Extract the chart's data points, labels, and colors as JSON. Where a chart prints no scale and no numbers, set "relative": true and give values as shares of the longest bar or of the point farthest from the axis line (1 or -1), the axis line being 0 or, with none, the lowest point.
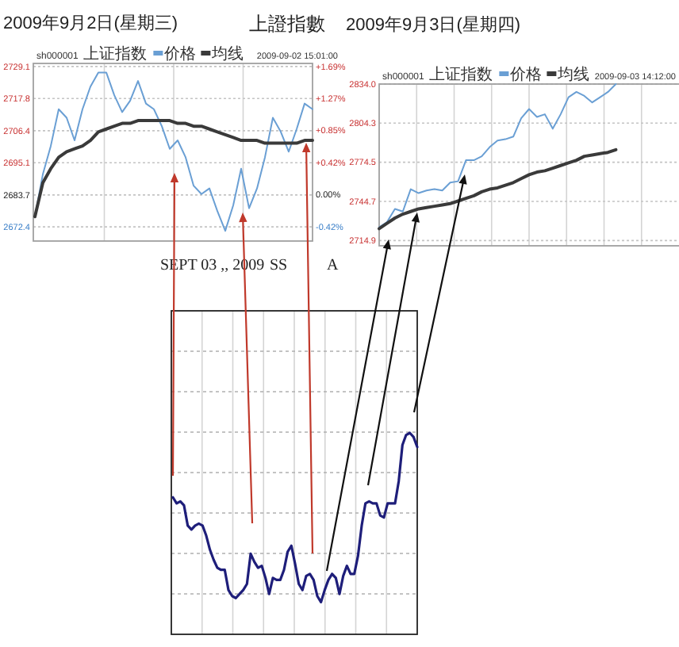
{
  "chart_data": [
    {
      "type": "line",
      "title": "2009年9月2日(星期三)",
      "subtitle": "上證指數",
      "annotations": [
        "sh000001",
        "上证指数",
        "2009-09-02 15:01:00"
      ],
      "categories": [
        null,
        null,
        null,
        null,
        null,
        null,
        null,
        null,
        null,
        null,
        null,
        null,
        null,
        null,
        null,
        null,
        null,
        null,
        null,
        null,
        null,
        null,
        null,
        null,
        null,
        null,
        null,
        null,
        null,
        null,
        null,
        null,
        null,
        null,
        null,
        null
      ],
      "series": [
        {
          "name": "价格",
          "color": "#6a9fd4",
          "values": [
            2676,
            2691,
            2701,
            2714,
            2711,
            2703,
            2714,
            2722,
            2727,
            2727,
            2719,
            2713,
            2717,
            2724,
            2716,
            2714,
            2708,
            2700,
            2703,
            2697,
            2687,
            2684,
            2686,
            2678,
            2671,
            2680,
            2693,
            2679,
            2686,
            2697,
            2711,
            2706,
            2699,
            2707,
            2716,
            2714
          ]
        },
        {
          "name": "均线",
          "color": "#3a3a3a",
          "values": [
            2676,
            2688,
            2693,
            2697,
            2699,
            2700,
            2701,
            2703,
            2706,
            2707,
            2708,
            2709,
            2709,
            2710,
            2710,
            2710,
            2710,
            2710,
            2709,
            2709,
            2708,
            2708,
            2707,
            2706,
            2705,
            2704,
            2703,
            2703,
            2703,
            2702,
            2702,
            2702,
            2702,
            2702,
            2703,
            2703
          ]
        }
      ],
      "ylim": [
        2667.4,
        2730.2
      ],
      "yticks": [
        2729.1,
        2717.8,
        2706.4,
        2695.1,
        2683.7,
        2672.4
      ],
      "y2lim": [
        -0.61,
        1.73
      ],
      "y2ticks": [
        {
          "value": 1.69,
          "label": "+1.69%"
        },
        {
          "value": 1.27,
          "label": "+1.27%"
        },
        {
          "value": 0.85,
          "label": "+0.85%"
        },
        {
          "value": 0.42,
          "label": "+0.42%"
        },
        {
          "value": 0,
          "label": "0.00%"
        },
        {
          "value": -0.42,
          "label": "-0.42%"
        }
      ],
      "grid": true,
      "legend": "top"
    },
    {
      "type": "line",
      "title": "2009年9月3日(星期四)",
      "annotations": [
        "sh000001",
        "上证指数",
        "2009-09-03 14:12:00"
      ],
      "categories": [
        null,
        null,
        null,
        null,
        null,
        null,
        null,
        null,
        null,
        null,
        null,
        null,
        null,
        null,
        null,
        null,
        null,
        null,
        null,
        null,
        null,
        null,
        null,
        null,
        null,
        null,
        null,
        null,
        null,
        null,
        null,
        null,
        null,
        null,
        null,
        null,
        null,
        null,
        null
      ],
      "series": [
        {
          "name": "价格",
          "color": "#6a9fd4",
          "values": [
            2725,
            2729,
            2739,
            2737,
            2754,
            2751,
            2753,
            2754,
            2753,
            2759,
            2760,
            2776,
            2776,
            2779,
            2786,
            2791,
            2792,
            2794,
            2808,
            2815,
            2809,
            2811,
            2800,
            2811,
            2824,
            2828,
            2825,
            2820,
            2824,
            2828,
            2834,
            null,
            null,
            null,
            null,
            null,
            null,
            null,
            null
          ]
        },
        {
          "name": "均线",
          "color": "#3a3a3a",
          "values": [
            2724,
            2728,
            2732,
            2735,
            2737,
            2739,
            2740,
            2741,
            2742,
            2743,
            2745,
            2747,
            2749,
            2752,
            2754,
            2755,
            2757,
            2759,
            2762,
            2765,
            2767,
            2768,
            2770,
            2772,
            2774,
            2776,
            2779,
            2780,
            2781,
            2782,
            2784,
            null,
            null,
            null,
            null,
            null,
            null,
            null,
            null
          ]
        }
      ],
      "ylim": [
        2710.9,
        2834
      ],
      "yticks": [
        {
          "value": 2834,
          "label": "2834.0"
        },
        2804.3,
        2774.5,
        2744.7,
        2714.9
      ],
      "grid": true,
      "legend": "top"
    },
    {
      "type": "line",
      "title": "SEPT 03 ,, 2009",
      "annotations": [
        "SS",
        "A"
      ],
      "relative": true,
      "categories": [
        null,
        null,
        null,
        null,
        null,
        null,
        null,
        null,
        null,
        null,
        null,
        null,
        null,
        null,
        null,
        null,
        null,
        null,
        null,
        null,
        null,
        null,
        null,
        null,
        null,
        null,
        null,
        null,
        null,
        null,
        null,
        null,
        null,
        null,
        null,
        null,
        null,
        null,
        null,
        null,
        null,
        null,
        null,
        null,
        null,
        null,
        null,
        null,
        null,
        null,
        null,
        null,
        null,
        null,
        null,
        null,
        null,
        null,
        null,
        null,
        null,
        null,
        null,
        null,
        null,
        null,
        null
      ],
      "series": [
        {
          "color": "#1e1e7a",
          "values": [
            0.68,
            0.65,
            0.66,
            0.64,
            0.54,
            0.52,
            0.54,
            0.55,
            0.54,
            0.49,
            0.42,
            0.37,
            0.33,
            0.32,
            0.32,
            0.22,
            0.19,
            0.18,
            0.2,
            0.22,
            0.25,
            0.4,
            0.36,
            0.33,
            0.34,
            0.28,
            0.2,
            0.28,
            0.27,
            0.27,
            0.32,
            0.41,
            0.44,
            0.35,
            0.25,
            0.22,
            0.29,
            0.3,
            0.27,
            0.19,
            0.16,
            0.22,
            0.27,
            0.3,
            0.28,
            0.2,
            0.29,
            0.34,
            0.3,
            0.3,
            0.39,
            0.54,
            0.65,
            0.66,
            0.65,
            0.65,
            0.59,
            0.58,
            0.65,
            0.65,
            0.65,
            0.76,
            0.94,
            0.99,
            1,
            0.98,
            0.93
          ]
        }
      ],
      "grid": true
    }
  ]
}
